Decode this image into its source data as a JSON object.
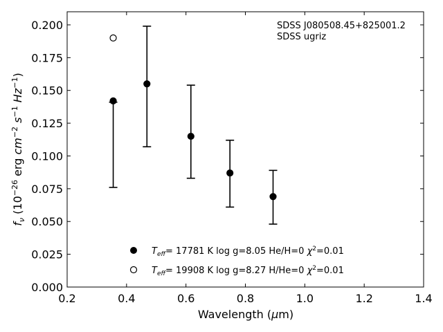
{
  "chart_data": {
    "type": "scatter",
    "title": "",
    "xlabel": "Wavelength (μm)",
    "ylabel": "f_ν (10^-26 erg cm^-2 s^-1 Hz^-1)",
    "xlim": [
      0.2,
      1.4
    ],
    "ylim": [
      0.0,
      0.21
    ],
    "x_ticks": [
      0.2,
      0.4,
      0.6,
      0.8,
      1.0,
      1.2,
      1.4
    ],
    "x_tick_labels": [
      "0.2",
      "0.4",
      "0.6",
      "0.8",
      "1.0",
      "1.2",
      "1.4"
    ],
    "y_ticks": [
      0.0,
      0.025,
      0.05,
      0.075,
      0.1,
      0.125,
      0.15,
      0.175,
      0.2
    ],
    "y_tick_labels": [
      "0.000",
      "0.025",
      "0.050",
      "0.075",
      "0.100",
      "0.125",
      "0.150",
      "0.175",
      "0.200"
    ],
    "grid": false,
    "annotations": [
      "SDSS J080508.45+825001.2",
      "SDSS ugriz"
    ],
    "observed": {
      "x": [
        0.3551,
        0.4686,
        0.6166,
        0.748,
        0.8932
      ],
      "yerr_low": [
        0.076,
        0.107,
        0.083,
        0.061,
        0.048
      ],
      "yerr_high": [
        0.141,
        0.199,
        0.154,
        0.112,
        0.089
      ]
    },
    "series": [
      {
        "name": "T_eff= 17781 K  log g=8.05  He/H=0  χ²=0.01",
        "marker": "filled-circle",
        "x": [
          0.3551,
          0.4686,
          0.6166,
          0.748,
          0.8932
        ],
        "y": [
          0.142,
          0.155,
          0.115,
          0.087,
          0.069
        ]
      },
      {
        "name": "T_eff= 19908 K  log g=8.27  H/He=0  χ²=0.01",
        "marker": "open-circle",
        "x": [
          0.3551
        ],
        "y": [
          0.19
        ]
      }
    ],
    "legend_position": "bottom-center"
  },
  "colors": {
    "marker": "#000000",
    "background": "#ffffff"
  }
}
